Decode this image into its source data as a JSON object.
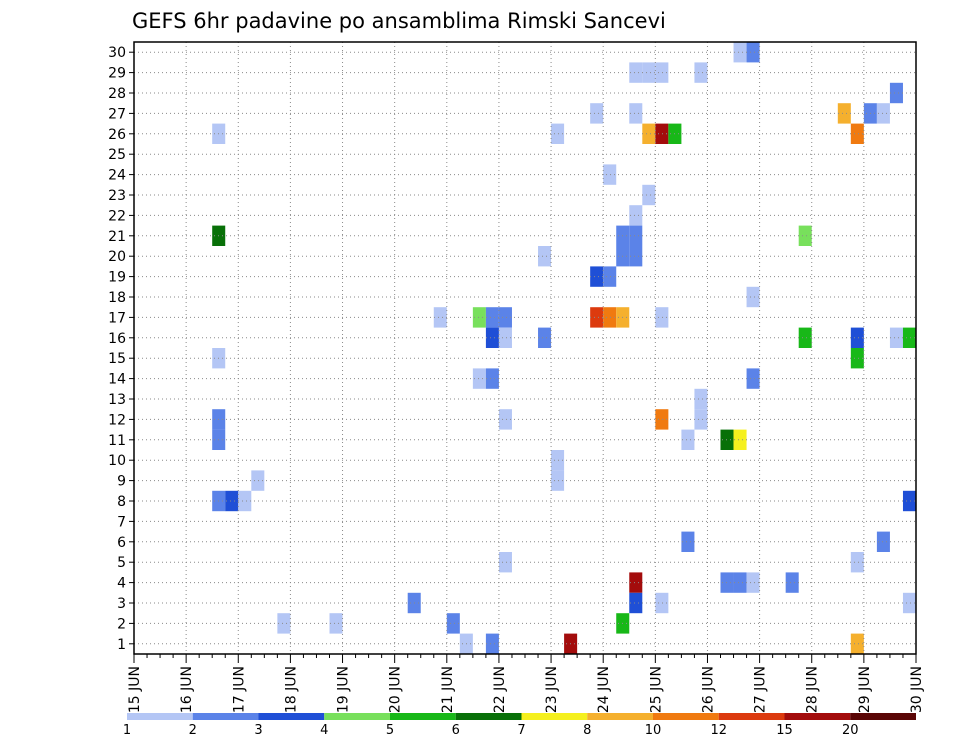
{
  "chart_data": {
    "type": "heatmap",
    "title": "GEFS 6hr padavine po ansamblima Rimski Sancevi",
    "xlabel": "",
    "ylabel": "",
    "x_tick_labels": [
      "15 JUN",
      "16 JUN",
      "17 JUN",
      "18 JUN",
      "19 JUN",
      "20 JUN",
      "21 JUN",
      "22 JUN",
      "23 JUN",
      "24 JUN",
      "25 JUN",
      "26 JUN",
      "27 JUN",
      "28 JUN",
      "29 JUN",
      "30 JUN"
    ],
    "y_tick_labels": [
      "1",
      "2",
      "3",
      "4",
      "5",
      "6",
      "7",
      "8",
      "9",
      "10",
      "11",
      "12",
      "13",
      "14",
      "15",
      "16",
      "17",
      "18",
      "19",
      "20",
      "21",
      "22",
      "23",
      "24",
      "25",
      "26",
      "27",
      "28",
      "29",
      "30"
    ],
    "xlim": [
      0,
      60
    ],
    "ylim": [
      0.5,
      30.5
    ],
    "x_step_hours": 6,
    "grid": true,
    "legend": {
      "placement": "bottom",
      "levels": [
        "1",
        "2",
        "3",
        "4",
        "5",
        "6",
        "7",
        "8",
        "10",
        "12",
        "15",
        "20"
      ],
      "colors": [
        "#b4c6f5",
        "#5b83e8",
        "#1f4fd6",
        "#78e05c",
        "#18b818",
        "#087008",
        "#f5f01e",
        "#f5b02e",
        "#f07a10",
        "#dc3a0e",
        "#a30c0c",
        "#5a0505"
      ]
    },
    "colors": {
      "c1": "#b4c6f5",
      "c2": "#5b83e8",
      "c3": "#1f4fd6",
      "c4": "#78e05c",
      "c5": "#18b818",
      "c6": "#087008",
      "c7": "#f5f01e",
      "c8": "#f5b02e",
      "c10": "#f07a10",
      "c12": "#dc3a0e",
      "c15": "#a30c0c",
      "c20": "#5a0505"
    },
    "cells": [
      {
        "member": 30,
        "step": 47,
        "cls": "c1"
      },
      {
        "member": 30,
        "step": 48,
        "cls": "c2"
      },
      {
        "member": 29,
        "step": 39,
        "cls": "c1"
      },
      {
        "member": 29,
        "step": 40,
        "cls": "c1"
      },
      {
        "member": 29,
        "step": 41,
        "cls": "c1"
      },
      {
        "member": 29,
        "step": 44,
        "cls": "c1"
      },
      {
        "member": 28,
        "step": 59,
        "cls": "c2"
      },
      {
        "member": 27,
        "step": 36,
        "cls": "c1"
      },
      {
        "member": 27,
        "step": 39,
        "cls": "c1"
      },
      {
        "member": 27,
        "step": 55,
        "cls": "c8"
      },
      {
        "member": 27,
        "step": 57,
        "cls": "c2"
      },
      {
        "member": 27,
        "step": 58,
        "cls": "c1"
      },
      {
        "member": 26,
        "step": 7,
        "cls": "c1"
      },
      {
        "member": 26,
        "step": 33,
        "cls": "c1"
      },
      {
        "member": 26,
        "step": 40,
        "cls": "c8"
      },
      {
        "member": 26,
        "step": 41,
        "cls": "c15"
      },
      {
        "member": 26,
        "step": 42,
        "cls": "c5"
      },
      {
        "member": 26,
        "step": 56,
        "cls": "c10"
      },
      {
        "member": 24,
        "step": 37,
        "cls": "c1"
      },
      {
        "member": 23,
        "step": 40,
        "cls": "c1"
      },
      {
        "member": 22,
        "step": 39,
        "cls": "c1"
      },
      {
        "member": 21,
        "step": 7,
        "cls": "c6"
      },
      {
        "member": 21,
        "step": 38,
        "cls": "c2"
      },
      {
        "member": 21,
        "step": 39,
        "cls": "c2"
      },
      {
        "member": 21,
        "step": 52,
        "cls": "c4"
      },
      {
        "member": 20,
        "step": 32,
        "cls": "c1"
      },
      {
        "member": 20,
        "step": 38,
        "cls": "c2"
      },
      {
        "member": 20,
        "step": 39,
        "cls": "c2"
      },
      {
        "member": 19,
        "step": 36,
        "cls": "c3"
      },
      {
        "member": 19,
        "step": 37,
        "cls": "c2"
      },
      {
        "member": 18,
        "step": 48,
        "cls": "c1"
      },
      {
        "member": 17,
        "step": 24,
        "cls": "c1"
      },
      {
        "member": 17,
        "step": 27,
        "cls": "c4"
      },
      {
        "member": 17,
        "step": 28,
        "cls": "c2"
      },
      {
        "member": 17,
        "step": 29,
        "cls": "c2"
      },
      {
        "member": 17,
        "step": 36,
        "cls": "c12"
      },
      {
        "member": 17,
        "step": 37,
        "cls": "c10"
      },
      {
        "member": 17,
        "step": 38,
        "cls": "c8"
      },
      {
        "member": 17,
        "step": 41,
        "cls": "c1"
      },
      {
        "member": 16,
        "step": 28,
        "cls": "c3"
      },
      {
        "member": 16,
        "step": 29,
        "cls": "c1"
      },
      {
        "member": 16,
        "step": 32,
        "cls": "c2"
      },
      {
        "member": 16,
        "step": 52,
        "cls": "c5"
      },
      {
        "member": 16,
        "step": 56,
        "cls": "c3"
      },
      {
        "member": 16,
        "step": 59,
        "cls": "c1"
      },
      {
        "member": 16,
        "step": 60,
        "cls": "c5"
      },
      {
        "member": 15,
        "step": 7,
        "cls": "c1"
      },
      {
        "member": 15,
        "step": 56,
        "cls": "c5"
      },
      {
        "member": 14,
        "step": 27,
        "cls": "c1"
      },
      {
        "member": 14,
        "step": 28,
        "cls": "c2"
      },
      {
        "member": 14,
        "step": 48,
        "cls": "c2"
      },
      {
        "member": 13,
        "step": 44,
        "cls": "c1"
      },
      {
        "member": 12,
        "step": 7,
        "cls": "c2"
      },
      {
        "member": 12,
        "step": 29,
        "cls": "c1"
      },
      {
        "member": 12,
        "step": 41,
        "cls": "c10"
      },
      {
        "member": 12,
        "step": 44,
        "cls": "c1"
      },
      {
        "member": 11,
        "step": 7,
        "cls": "c2"
      },
      {
        "member": 11,
        "step": 43,
        "cls": "c1"
      },
      {
        "member": 11,
        "step": 46,
        "cls": "c6"
      },
      {
        "member": 11,
        "step": 47,
        "cls": "c7"
      },
      {
        "member": 10,
        "step": 33,
        "cls": "c1"
      },
      {
        "member": 9,
        "step": 10,
        "cls": "c1"
      },
      {
        "member": 9,
        "step": 33,
        "cls": "c1"
      },
      {
        "member": 8,
        "step": 7,
        "cls": "c2"
      },
      {
        "member": 8,
        "step": 8,
        "cls": "c3"
      },
      {
        "member": 8,
        "step": 9,
        "cls": "c1"
      },
      {
        "member": 8,
        "step": 60,
        "cls": "c3"
      },
      {
        "member": 6,
        "step": 43,
        "cls": "c2"
      },
      {
        "member": 6,
        "step": 58,
        "cls": "c2"
      },
      {
        "member": 5,
        "step": 29,
        "cls": "c1"
      },
      {
        "member": 5,
        "step": 56,
        "cls": "c1"
      },
      {
        "member": 4,
        "step": 39,
        "cls": "c15"
      },
      {
        "member": 4,
        "step": 46,
        "cls": "c2"
      },
      {
        "member": 4,
        "step": 47,
        "cls": "c2"
      },
      {
        "member": 4,
        "step": 48,
        "cls": "c1"
      },
      {
        "member": 4,
        "step": 51,
        "cls": "c2"
      },
      {
        "member": 3,
        "step": 22,
        "cls": "c2"
      },
      {
        "member": 3,
        "step": 39,
        "cls": "c3"
      },
      {
        "member": 3,
        "step": 41,
        "cls": "c1"
      },
      {
        "member": 3,
        "step": 60,
        "cls": "c1"
      },
      {
        "member": 2,
        "step": 12,
        "cls": "c1"
      },
      {
        "member": 2,
        "step": 16,
        "cls": "c1"
      },
      {
        "member": 2,
        "step": 25,
        "cls": "c2"
      },
      {
        "member": 2,
        "step": 38,
        "cls": "c5"
      },
      {
        "member": 1,
        "step": 26,
        "cls": "c1"
      },
      {
        "member": 1,
        "step": 28,
        "cls": "c2"
      },
      {
        "member": 1,
        "step": 34,
        "cls": "c15"
      },
      {
        "member": 1,
        "step": 56,
        "cls": "c8"
      }
    ]
  }
}
